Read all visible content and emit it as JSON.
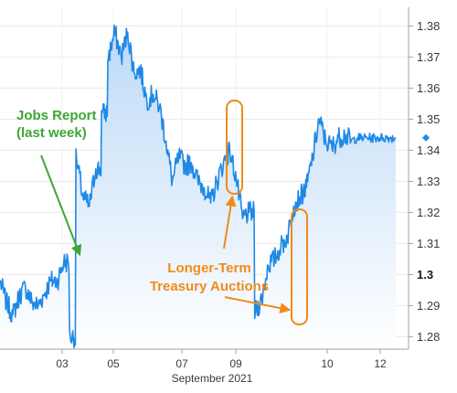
{
  "chart_data": {
    "type": "area",
    "title": "",
    "xlabel": "September 2021",
    "ylabel": "",
    "x_tick_labels": [
      "03",
      "05",
      "07",
      "09",
      "10",
      "12"
    ],
    "y_tick_labels": [
      "1.28",
      "1.29",
      "1.3",
      "1.31",
      "1.32",
      "1.33",
      "1.34",
      "1.35",
      "1.36",
      "1.37",
      "1.38"
    ],
    "y_tick_values": [
      1.28,
      1.29,
      1.3,
      1.31,
      1.32,
      1.33,
      1.34,
      1.35,
      1.36,
      1.37,
      1.38
    ],
    "y_bold_label": "1.3",
    "ylim": [
      1.276,
      1.386
    ],
    "xlim": [
      0,
      32
    ],
    "grid": true,
    "last_value": 1.344,
    "line_color": "#1e88e5",
    "fill_color_top": "#bcd9f7",
    "fill_color_bottom": "#ffffff",
    "annotation_color_green": "#3fa535",
    "annotation_color_orange": "#f08a1c",
    "series": [
      {
        "x": [
          0,
          0.5,
          1,
          1.5,
          2,
          2.5,
          3,
          3.5,
          4,
          4.5,
          5,
          5.5,
          6,
          6.5,
          7,
          7.5,
          8,
          8.5,
          9,
          9.5,
          10,
          10.5,
          11,
          11.5,
          12,
          12.5,
          13,
          13.5,
          14,
          14.5,
          15,
          15.5,
          16,
          16.5,
          17,
          17.5,
          18,
          18.5,
          19,
          19.5,
          20,
          20.5,
          21,
          21.5,
          22,
          22.5,
          23,
          23.5,
          24,
          24.5,
          25,
          25.5,
          26,
          26.5,
          27,
          27.5,
          28,
          28.5,
          29,
          29.5,
          30,
          30.5,
          31
        ],
        "y": [
          1.298,
          1.291,
          1.287,
          1.293,
          1.296,
          1.291,
          1.29,
          1.294,
          1.298,
          1.298,
          1.304,
          1.28,
          1.337,
          1.325,
          1.322,
          1.334,
          1.352,
          1.37,
          1.378,
          1.37,
          1.378,
          1.365,
          1.366,
          1.356,
          1.358,
          1.354,
          1.343,
          1.33,
          1.338,
          1.335,
          1.336,
          1.33,
          1.328,
          1.323,
          1.33,
          1.336,
          1.34,
          1.331,
          1.318,
          1.32,
          1.288,
          1.292,
          1.303,
          1.305,
          1.309,
          1.312,
          1.322,
          1.325,
          1.328,
          1.338,
          1.35,
          1.343,
          1.341,
          1.344,
          1.345,
          1.343,
          1.344,
          1.344,
          1.344,
          1.344,
          1.344,
          1.344,
          1.344
        ]
      }
    ],
    "annotations": [
      {
        "id": "jobs",
        "lines": [
          "Jobs Report",
          "(last week)"
        ]
      },
      {
        "id": "auctions",
        "lines": [
          "Longer-Term",
          "Treasury Auctions"
        ]
      }
    ]
  }
}
